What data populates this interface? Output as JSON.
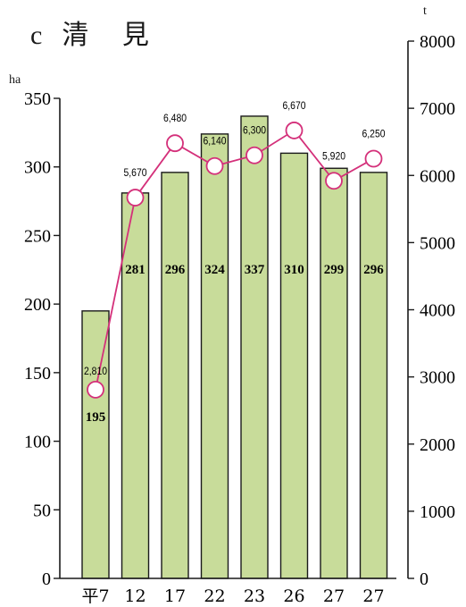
{
  "title": {
    "letter": "c",
    "text": "清 見"
  },
  "chart_data": {
    "type": "bar",
    "categories": [
      "平7",
      "12",
      "17",
      "22",
      "23",
      "26",
      "27",
      "27"
    ],
    "series": [
      {
        "values": [
          195,
          281,
          296,
          324,
          337,
          310,
          299,
          296
        ],
        "axis": "left",
        "kind": "bar",
        "data_labels": [
          "195",
          "281",
          "296",
          "324",
          "337",
          "310",
          "299",
          "296"
        ]
      },
      {
        "values": [
          2810,
          5670,
          6480,
          6140,
          6300,
          6670,
          5920,
          6250
        ],
        "axis": "right",
        "kind": "line",
        "data_labels": [
          "2,810",
          "5,670",
          "6,480",
          "6,140",
          "6,300",
          "6,670",
          "5,920",
          "6,250"
        ]
      }
    ],
    "y_left": {
      "unit": "ha",
      "ticks": [
        "0",
        "50",
        "100",
        "150",
        "200",
        "250",
        "300",
        "350"
      ],
      "range": [
        0,
        350
      ]
    },
    "y_right": {
      "unit": "t",
      "ticks": [
        "0",
        "1000",
        "2000",
        "3000",
        "4000",
        "5000",
        "6000",
        "7000",
        "8000"
      ],
      "range": [
        0,
        8000
      ]
    },
    "grid": false,
    "legend": "none",
    "colors": {
      "bar": "#c8dc9a",
      "bar_stroke": "#1a1a1a",
      "line": "#d4307a",
      "marker_fill": "#ffffff"
    }
  }
}
